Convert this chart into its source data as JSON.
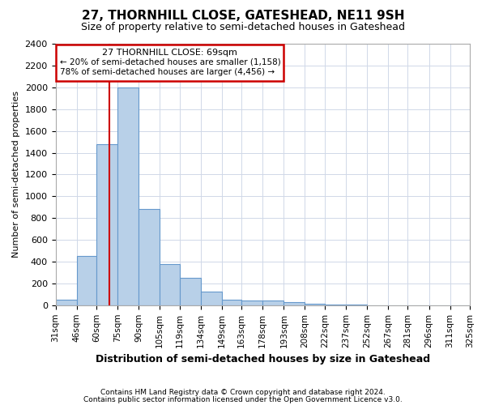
{
  "title": "27, THORNHILL CLOSE, GATESHEAD, NE11 9SH",
  "subtitle": "Size of property relative to semi-detached houses in Gateshead",
  "xlabel": "Distribution of semi-detached houses by size in Gateshead",
  "ylabel": "Number of semi-detached properties",
  "annotation_line1": "27 THORNHILL CLOSE: 69sqm",
  "annotation_line2": "← 20% of semi-detached houses are smaller (1,158)",
  "annotation_line3": "78% of semi-detached houses are larger (4,456) →",
  "property_size": 69,
  "bins": [
    31,
    46,
    60,
    75,
    90,
    105,
    119,
    134,
    149,
    163,
    178,
    193,
    208,
    222,
    237,
    252,
    267,
    281,
    296,
    311,
    325
  ],
  "counts": [
    50,
    450,
    1480,
    2000,
    880,
    375,
    255,
    125,
    50,
    40,
    40,
    30,
    15,
    5,
    3,
    2,
    1,
    1,
    1,
    1
  ],
  "bar_color": "#b8d0e8",
  "bar_edge_color": "#6699cc",
  "red_line_color": "#cc0000",
  "annotation_box_color": "#cc0000",
  "grid_color": "#d0d8e8",
  "background_color": "#ffffff",
  "footer_line1": "Contains HM Land Registry data © Crown copyright and database right 2024.",
  "footer_line2": "Contains public sector information licensed under the Open Government Licence v3.0.",
  "ylim": [
    0,
    2400
  ],
  "yticks": [
    0,
    200,
    400,
    600,
    800,
    1000,
    1200,
    1400,
    1600,
    1800,
    2000,
    2200,
    2400
  ]
}
